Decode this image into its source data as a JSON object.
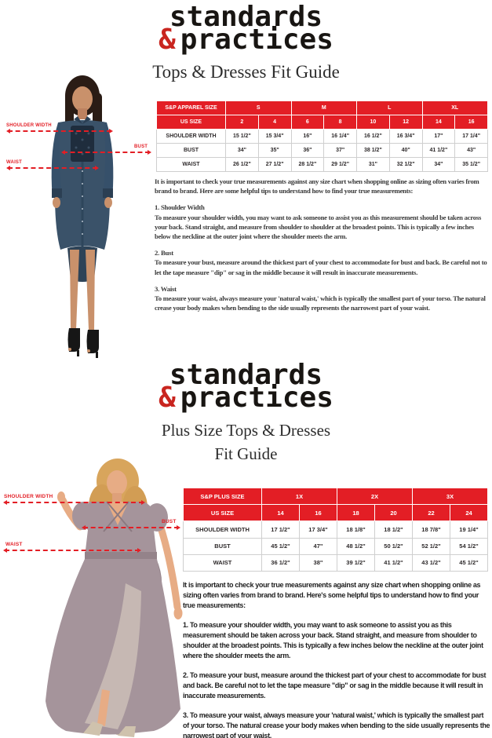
{
  "brand": {
    "logo_word1": "standards",
    "logo_amp": "&",
    "logo_word2": "practices"
  },
  "colors": {
    "accent_red": "#e31e25",
    "logo_amp_red": "#c9251f",
    "table_header_red": "#e31e25",
    "regular_dress_denim": "#3a5269",
    "plus_dress_mauve": "#a5949b"
  },
  "section_regular": {
    "title": "Tops & Dresses Fit Guide",
    "annotations": {
      "shoulder_width": "SHOULDER WIDTH",
      "bust": "BUST",
      "waist": "WAIST"
    },
    "intro": "It is important to check your true measurements against any size chart when shopping online as sizing often varies from brand to brand. Here are some helpful tips to understand how to find your true measurements:",
    "tips": [
      {
        "heading": "1. Shoulder Width",
        "body": "To measure your shoulder width, you may want to ask someone to assist you as this measurement should be taken across your back. Stand straight, and measure from shoulder to shoulder at the broadest points. This is typically a few inches below the neckline at the outer joint where the shoulder meets the arm."
      },
      {
        "heading": "2. Bust",
        "body": "To measure your bust, measure around the thickest part of your chest to accommodate for bust and back. Be careful not to let the tape measure \"dip\" or sag in the middle because it will result in inaccurate measurements."
      },
      {
        "heading": "3. Waist",
        "body": "To measure your waist, always measure your 'natural waist,' which is typically the smallest part of your torso.  The natural crease your body makes when bending to the side usually represents the narrowest part of your waist."
      }
    ]
  },
  "section_plus": {
    "title_line1": "Plus Size Tops & Dresses",
    "title_line2": "Fit Guide",
    "annotations": {
      "shoulder_width": "SHOULDER WIDTH",
      "bust": "BUST",
      "waist": "WAIST"
    },
    "intro": "It is important to check your true measurements against any size chart when shopping online as sizing often varies from brand to brand. Here's some helpful tips to understand how to find your true measurements:",
    "tips": [
      {
        "body": "1. To measure your shoulder width, you may want to ask someone to assist you as this measurement should be taken across your back. Stand straight, and measure from shoulder to shoulder at the broadest points. This is typically a few inches below the neckline at the outer joint where the shoulder meets the arm."
      },
      {
        "body": "2. To measure your bust, measure around the thickest part of your chest to accommodate for bust and back. Be careful not to let the tape measure \"dip\" or sag in the middle because it will result in inaccurate measurements."
      },
      {
        "body": "3. To measure your waist, always measure your  'natural waist,'  which is typically the smallest part of your torso.  The natural crease your body makes when bending to the side usually represents the narrowest part of your waist."
      }
    ]
  },
  "tables": {
    "regular": {
      "type": "table",
      "header_row1": {
        "label": "S&P APPAREL SIZE",
        "groups": [
          "S",
          "M",
          "L",
          "XL"
        ]
      },
      "header_row2": {
        "label": "US SIZE",
        "sizes": [
          "2",
          "4",
          "6",
          "8",
          "10",
          "12",
          "14",
          "16"
        ]
      },
      "rows": [
        {
          "label": "SHOULDER WIDTH",
          "values": [
            "15 1/2\"",
            "15 3/4\"",
            "16\"",
            "16 1/4\"",
            "16 1/2\"",
            "16 3/4\"",
            "17\"",
            "17 1/4\""
          ]
        },
        {
          "label": "BUST",
          "values": [
            "34\"",
            "35\"",
            "36\"",
            "37\"",
            "38 1/2\"",
            "40\"",
            "41 1/2\"",
            "43\""
          ]
        },
        {
          "label": "WAIST",
          "values": [
            "26 1/2\"",
            "27 1/2\"",
            "28 1/2\"",
            "29 1/2\"",
            "31\"",
            "32 1/2\"",
            "34\"",
            "35 1/2\""
          ]
        }
      ]
    },
    "plus": {
      "type": "table",
      "header_row1": {
        "label": "S&P PLUS SIZE",
        "groups": [
          "1X",
          "2X",
          "3X"
        ]
      },
      "header_row2": {
        "label": "US SIZE",
        "sizes": [
          "14",
          "16",
          "18",
          "20",
          "22",
          "24"
        ]
      },
      "rows": [
        {
          "label": "SHOULDER WIDTH",
          "values": [
            "17 1/2\"",
            "17 3/4\"",
            "18 1/8\"",
            "18 1/2\"",
            "18 7/8\"",
            "19 1/4\""
          ]
        },
        {
          "label": "BUST",
          "values": [
            "45 1/2\"",
            "47\"",
            "48 1/2\"",
            "50 1/2\"",
            "52 1/2\"",
            "54 1/2\""
          ]
        },
        {
          "label": "WAIST",
          "values": [
            "36 1/2\"",
            "38\"",
            "39 1/2\"",
            "41 1/2\"",
            "43 1/2\"",
            "45 1/2\""
          ]
        }
      ]
    }
  }
}
